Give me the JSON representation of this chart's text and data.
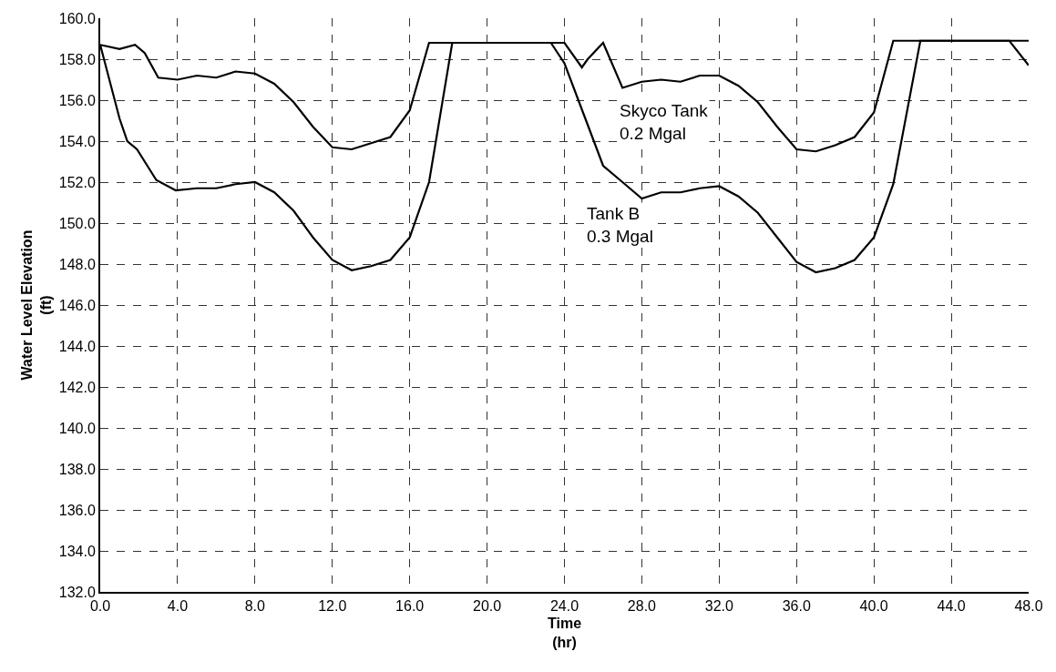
{
  "chart_data": {
    "type": "line",
    "xlabel": "Time\n(hr)",
    "ylabel": "Water Level Elevation\n(ft)",
    "xlim": [
      0,
      48
    ],
    "ylim": [
      132,
      160
    ],
    "xticks": [
      {
        "value": 0,
        "label": "0.0"
      },
      {
        "value": 4,
        "label": "4.0"
      },
      {
        "value": 8,
        "label": "8.0"
      },
      {
        "value": 12,
        "label": "12.0"
      },
      {
        "value": 16,
        "label": "16.0"
      },
      {
        "value": 20,
        "label": "20.0"
      },
      {
        "value": 24,
        "label": "24.0"
      },
      {
        "value": 28,
        "label": "28.0"
      },
      {
        "value": 32,
        "label": "32.0"
      },
      {
        "value": 36,
        "label": "36.0"
      },
      {
        "value": 40,
        "label": "40.0"
      },
      {
        "value": 44,
        "label": "44.0"
      },
      {
        "value": 48,
        "label": "48.0"
      }
    ],
    "yticks": [
      {
        "value": 132,
        "label": "132.0"
      },
      {
        "value": 134,
        "label": "134.0"
      },
      {
        "value": 136,
        "label": "136.0"
      },
      {
        "value": 138,
        "label": "138.0"
      },
      {
        "value": 140,
        "label": "140.0"
      },
      {
        "value": 142,
        "label": "142.0"
      },
      {
        "value": 144,
        "label": "144.0"
      },
      {
        "value": 146,
        "label": "146.0"
      },
      {
        "value": 148,
        "label": "148.0"
      },
      {
        "value": 150,
        "label": "150.0"
      },
      {
        "value": 152,
        "label": "152.0"
      },
      {
        "value": 154,
        "label": "154.0"
      },
      {
        "value": 156,
        "label": "156.0"
      },
      {
        "value": 158,
        "label": "158.0"
      },
      {
        "value": 160,
        "label": "160.0"
      }
    ],
    "grid": true,
    "legend": false,
    "line_style": "solid",
    "series": [
      {
        "name": "Skyco Tank\n0.2 Mgal",
        "color": "#000000",
        "x": [
          0,
          1,
          1.8,
          2.3,
          3,
          4,
          5,
          6,
          7,
          8,
          9,
          10,
          11,
          12,
          13,
          14,
          15,
          16,
          17,
          23,
          24,
          24.9,
          25.2,
          26,
          27,
          28,
          29,
          30,
          31,
          32,
          33,
          34,
          35,
          36,
          37,
          38,
          39,
          40,
          41,
          47,
          48
        ],
        "values": [
          158.7,
          158.5,
          158.7,
          158.3,
          157.1,
          157.0,
          157.2,
          157.1,
          157.4,
          157.3,
          156.8,
          155.9,
          154.7,
          153.7,
          153.6,
          153.9,
          154.2,
          155.5,
          158.8,
          158.8,
          158.8,
          157.6,
          158.0,
          158.8,
          156.6,
          156.9,
          157.0,
          156.9,
          157.2,
          157.2,
          156.7,
          155.9,
          154.7,
          153.6,
          153.5,
          153.8,
          154.2,
          155.4,
          158.9,
          158.9,
          158.9
        ]
      },
      {
        "name": "Tank B\n0.3 Mgal",
        "color": "#000000",
        "x": [
          0,
          1,
          1.4,
          1.9,
          2.9,
          3.9,
          5,
          6,
          7,
          8,
          9,
          10,
          11,
          12,
          13,
          14,
          15,
          16,
          17,
          18.2,
          23.3,
          24,
          25,
          26,
          27,
          28,
          29,
          30,
          31,
          32,
          33,
          34,
          35,
          36,
          37,
          38,
          39,
          40,
          41,
          42.4,
          47,
          48
        ],
        "values": [
          158.7,
          155.1,
          154.0,
          153.6,
          152.1,
          151.6,
          151.7,
          151.7,
          151.9,
          152.0,
          151.5,
          150.6,
          149.3,
          148.2,
          147.7,
          147.9,
          148.2,
          149.3,
          152.0,
          158.8,
          158.8,
          157.8,
          155.3,
          152.8,
          152.0,
          151.2,
          151.5,
          151.5,
          151.7,
          151.8,
          151.3,
          150.5,
          149.3,
          148.1,
          147.6,
          147.8,
          148.2,
          149.3,
          151.9,
          158.9,
          158.9,
          157.7
        ]
      }
    ]
  }
}
